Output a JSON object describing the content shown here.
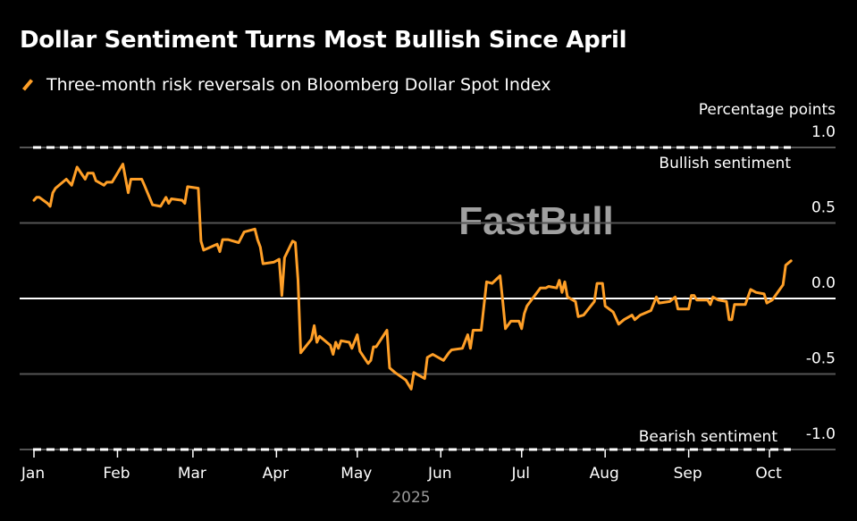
{
  "chart_data": {
    "type": "line",
    "title": "Dollar Sentiment Turns Most Bullish Since April",
    "legend_placement": "top-left",
    "ylabel": "Percentage points",
    "xlabel": "2025",
    "ylim": [
      -1.0,
      1.0
    ],
    "xlim": [
      "2025-01-01",
      "2025-10-15"
    ],
    "y_ticks": [
      "1.0",
      "0.5",
      "0.0",
      "-0.5",
      "-1.0"
    ],
    "y_tick_values": [
      1.0,
      0.5,
      0.0,
      -0.5,
      -1.0
    ],
    "x_ticks": [
      "Jan",
      "Feb",
      "Mar",
      "Apr",
      "May",
      "Jun",
      "Jul",
      "Aug",
      "Sep",
      "Oct"
    ],
    "x_tick_dates": [
      "2025-01-01",
      "2025-02-01",
      "2025-03-01",
      "2025-04-01",
      "2025-05-01",
      "2025-06-01",
      "2025-07-01",
      "2025-08-01",
      "2025-09-01",
      "2025-10-01"
    ],
    "grid": true,
    "reference_lines": [
      {
        "value": 1.0,
        "label": "Bullish sentiment",
        "style": "dashed"
      },
      {
        "value": -1.0,
        "label": "Bearish sentiment",
        "style": "dashed"
      }
    ],
    "series": [
      {
        "name": "Three-month risk reversals on Bloomberg Dollar Spot Index",
        "color": "#ff9f27",
        "points": [
          [
            "2025-01-01",
            0.65
          ],
          [
            "2025-01-02",
            0.67
          ],
          [
            "2025-01-03",
            0.67
          ],
          [
            "2025-01-06",
            0.63
          ],
          [
            "2025-01-07",
            0.61
          ],
          [
            "2025-01-08",
            0.7
          ],
          [
            "2025-01-09",
            0.73
          ],
          [
            "2025-01-13",
            0.79
          ],
          [
            "2025-01-15",
            0.75
          ],
          [
            "2025-01-17",
            0.87
          ],
          [
            "2025-01-20",
            0.79
          ],
          [
            "2025-01-21",
            0.83
          ],
          [
            "2025-01-23",
            0.83
          ],
          [
            "2025-01-24",
            0.78
          ],
          [
            "2025-01-27",
            0.75
          ],
          [
            "2025-01-28",
            0.77
          ],
          [
            "2025-01-30",
            0.77
          ],
          [
            "2025-02-03",
            0.89
          ],
          [
            "2025-02-05",
            0.7
          ],
          [
            "2025-02-06",
            0.79
          ],
          [
            "2025-02-10",
            0.79
          ],
          [
            "2025-02-11",
            0.75
          ],
          [
            "2025-02-14",
            0.62
          ],
          [
            "2025-02-17",
            0.61
          ],
          [
            "2025-02-19",
            0.67
          ],
          [
            "2025-02-20",
            0.63
          ],
          [
            "2025-02-21",
            0.66
          ],
          [
            "2025-02-25",
            0.65
          ],
          [
            "2025-02-26",
            0.63
          ],
          [
            "2025-02-27",
            0.74
          ],
          [
            "2025-03-03",
            0.73
          ],
          [
            "2025-03-04",
            0.38
          ],
          [
            "2025-03-05",
            0.32
          ],
          [
            "2025-03-10",
            0.36
          ],
          [
            "2025-03-11",
            0.31
          ],
          [
            "2025-03-12",
            0.39
          ],
          [
            "2025-03-14",
            0.39
          ],
          [
            "2025-03-18",
            0.37
          ],
          [
            "2025-03-20",
            0.44
          ],
          [
            "2025-03-24",
            0.46
          ],
          [
            "2025-03-25",
            0.39
          ],
          [
            "2025-03-26",
            0.34
          ],
          [
            "2025-03-27",
            0.23
          ],
          [
            "2025-03-31",
            0.24
          ],
          [
            "2025-04-02",
            0.26
          ],
          [
            "2025-04-03",
            0.02
          ],
          [
            "2025-04-04",
            0.27
          ],
          [
            "2025-04-07",
            0.38
          ],
          [
            "2025-04-08",
            0.37
          ],
          [
            "2025-04-09",
            0.12
          ],
          [
            "2025-04-10",
            -0.36
          ],
          [
            "2025-04-14",
            -0.27
          ],
          [
            "2025-04-15",
            -0.18
          ],
          [
            "2025-04-16",
            -0.29
          ],
          [
            "2025-04-17",
            -0.25
          ],
          [
            "2025-04-21",
            -0.31
          ],
          [
            "2025-04-22",
            -0.37
          ],
          [
            "2025-04-23",
            -0.29
          ],
          [
            "2025-04-24",
            -0.33
          ],
          [
            "2025-04-25",
            -0.28
          ],
          [
            "2025-04-28",
            -0.29
          ],
          [
            "2025-04-29",
            -0.33
          ],
          [
            "2025-05-01",
            -0.24
          ],
          [
            "2025-05-02",
            -0.35
          ],
          [
            "2025-05-05",
            -0.43
          ],
          [
            "2025-05-06",
            -0.41
          ],
          [
            "2025-05-07",
            -0.32
          ],
          [
            "2025-05-08",
            -0.32
          ],
          [
            "2025-05-12",
            -0.21
          ],
          [
            "2025-05-13",
            -0.46
          ],
          [
            "2025-05-15",
            -0.49
          ],
          [
            "2025-05-19",
            -0.54
          ],
          [
            "2025-05-21",
            -0.6
          ],
          [
            "2025-05-22",
            -0.49
          ],
          [
            "2025-05-26",
            -0.53
          ],
          [
            "2025-05-27",
            -0.39
          ],
          [
            "2025-05-29",
            -0.37
          ],
          [
            "2025-06-02",
            -0.41
          ],
          [
            "2025-06-04",
            -0.36
          ],
          [
            "2025-06-05",
            -0.34
          ],
          [
            "2025-06-09",
            -0.33
          ],
          [
            "2025-06-11",
            -0.24
          ],
          [
            "2025-06-12",
            -0.33
          ],
          [
            "2025-06-13",
            -0.21
          ],
          [
            "2025-06-16",
            -0.21
          ],
          [
            "2025-06-18",
            0.11
          ],
          [
            "2025-06-20",
            0.1
          ],
          [
            "2025-06-23",
            0.15
          ],
          [
            "2025-06-24",
            -0.02
          ],
          [
            "2025-06-25",
            -0.2
          ],
          [
            "2025-06-27",
            -0.15
          ],
          [
            "2025-06-30",
            -0.15
          ],
          [
            "2025-07-01",
            -0.2
          ],
          [
            "2025-07-02",
            -0.1
          ],
          [
            "2025-07-03",
            -0.05
          ],
          [
            "2025-07-08",
            0.07
          ],
          [
            "2025-07-10",
            0.07
          ],
          [
            "2025-07-11",
            0.08
          ],
          [
            "2025-07-14",
            0.07
          ],
          [
            "2025-07-15",
            0.12
          ],
          [
            "2025-07-16",
            0.04
          ],
          [
            "2025-07-17",
            0.11
          ],
          [
            "2025-07-18",
            0.01
          ],
          [
            "2025-07-21",
            -0.02
          ],
          [
            "2025-07-22",
            -0.12
          ],
          [
            "2025-07-24",
            -0.11
          ],
          [
            "2025-07-28",
            -0.02
          ],
          [
            "2025-07-29",
            0.1
          ],
          [
            "2025-07-31",
            0.1
          ],
          [
            "2025-08-01",
            -0.05
          ],
          [
            "2025-08-04",
            -0.09
          ],
          [
            "2025-08-06",
            -0.17
          ],
          [
            "2025-08-08",
            -0.14
          ],
          [
            "2025-08-11",
            -0.11
          ],
          [
            "2025-08-12",
            -0.14
          ],
          [
            "2025-08-14",
            -0.11
          ],
          [
            "2025-08-18",
            -0.08
          ],
          [
            "2025-08-20",
            0.01
          ],
          [
            "2025-08-21",
            -0.03
          ],
          [
            "2025-08-25",
            -0.02
          ],
          [
            "2025-08-27",
            0.01
          ],
          [
            "2025-08-28",
            -0.07
          ],
          [
            "2025-09-01",
            -0.07
          ],
          [
            "2025-09-02",
            0.02
          ],
          [
            "2025-09-03",
            0.02
          ],
          [
            "2025-09-04",
            -0.01
          ],
          [
            "2025-09-08",
            -0.01
          ],
          [
            "2025-09-09",
            -0.04
          ],
          [
            "2025-09-10",
            0.01
          ],
          [
            "2025-09-12",
            -0.01
          ],
          [
            "2025-09-15",
            -0.02
          ],
          [
            "2025-09-16",
            -0.14
          ],
          [
            "2025-09-17",
            -0.14
          ],
          [
            "2025-09-18",
            -0.04
          ],
          [
            "2025-09-22",
            -0.04
          ],
          [
            "2025-09-24",
            0.06
          ],
          [
            "2025-09-26",
            0.04
          ],
          [
            "2025-09-29",
            0.03
          ],
          [
            "2025-09-30",
            -0.03
          ],
          [
            "2025-10-02",
            -0.01
          ],
          [
            "2025-10-06",
            0.09
          ],
          [
            "2025-10-07",
            0.22
          ],
          [
            "2025-10-09",
            0.25
          ]
        ]
      }
    ]
  },
  "watermark": "FastBull",
  "colors": {
    "background": "#000000",
    "line": "#ff9f27",
    "grid": "#555555",
    "zero_line": "#ffffff",
    "year_label": "#9a9a9a",
    "watermark": "#bdbdbd"
  }
}
